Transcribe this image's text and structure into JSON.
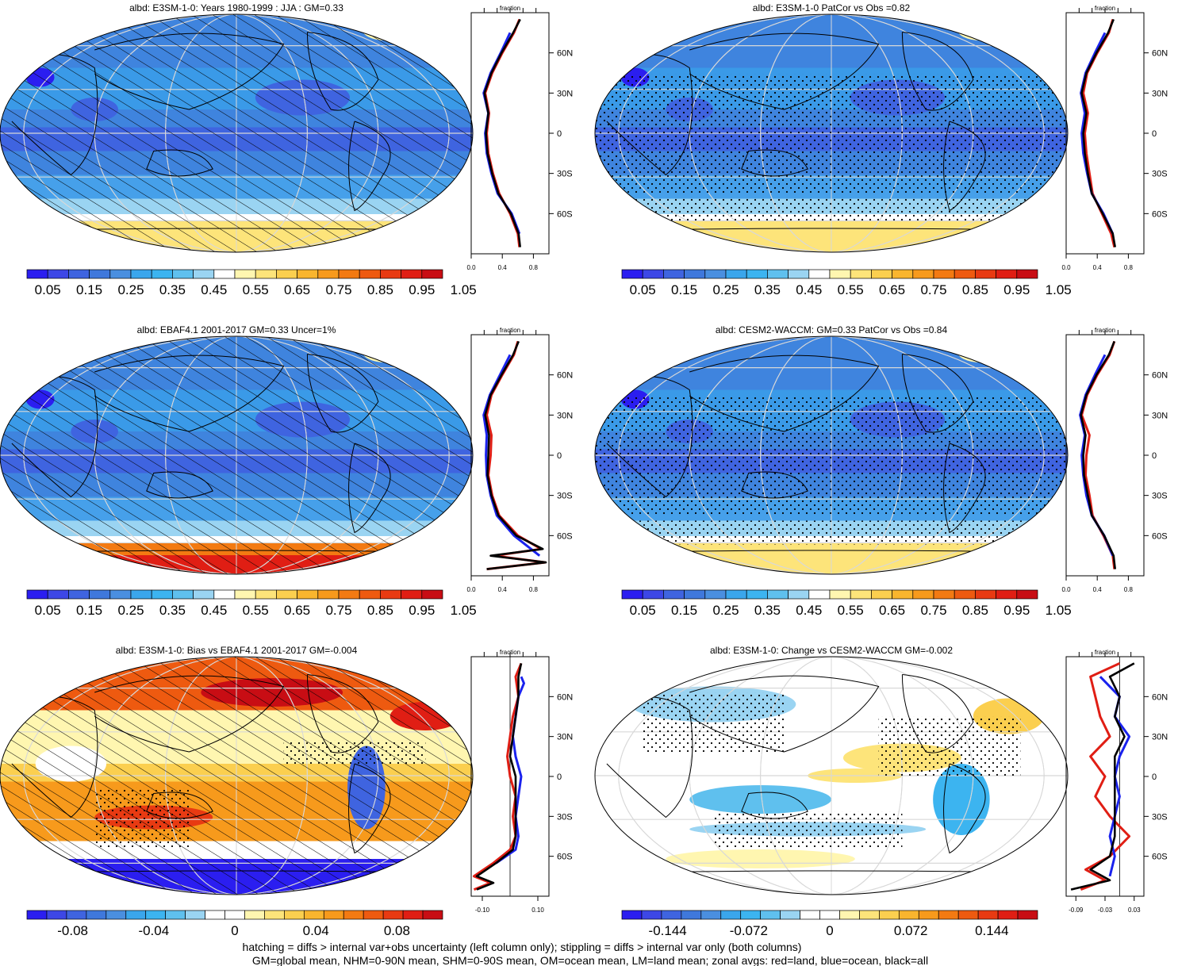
{
  "colors": {
    "levels_seq": [
      "#2b1ef0",
      "#3d47e6",
      "#3f64e0",
      "#3f78dc",
      "#4a8fe0",
      "#3aa6ec",
      "#3cb4f0",
      "#5fc0ee",
      "#9ad4f2",
      "#ffffff",
      "#fff6b0",
      "#fde47a",
      "#fbcf4f",
      "#f9b52e",
      "#f79a1c",
      "#f37a12",
      "#ee5a10",
      "#e83a12",
      "#e01e14",
      "#c80d14"
    ],
    "levels_div": [
      "#2b1ef0",
      "#3d47e6",
      "#3f64e0",
      "#3f78dc",
      "#4a8fe0",
      "#3aa6ec",
      "#3cb4f0",
      "#5fc0ee",
      "#9ad4f2",
      "#ffffff",
      "#ffffff",
      "#fff6b0",
      "#fde47a",
      "#fbcf4f",
      "#f9b52e",
      "#f79a1c",
      "#f37a12",
      "#ee5a10",
      "#e83a12",
      "#e01e14",
      "#c80d14"
    ],
    "land": "#e01e14",
    "ocean": "#1a22ee",
    "all": "#000000"
  },
  "panels": [
    {
      "title": "albd: E3SM-1-0: Years 1980-1999 : JJA : GM=0.33",
      "scale": "seq",
      "hatch": true,
      "stipple": false,
      "colorbar_labels": [
        "0.05",
        "0.15",
        "0.25",
        "0.35",
        "0.45",
        "0.55",
        "0.65",
        "0.75",
        "0.85",
        "0.95",
        "1.05"
      ]
    },
    {
      "title": "albd: E3SM-1-0 PatCor vs Obs =0.82",
      "scale": "seq",
      "hatch": false,
      "stipple": true,
      "colorbar_labels": [
        "0.05",
        "0.15",
        "0.25",
        "0.35",
        "0.45",
        "0.55",
        "0.65",
        "0.75",
        "0.85",
        "0.95",
        "1.05"
      ]
    },
    {
      "title": "albd: EBAF4.1 2001-2017 GM=0.33 Uncer=1%",
      "scale": "seq",
      "hatch": true,
      "stipple": false,
      "colorbar_labels": [
        "0.05",
        "0.15",
        "0.25",
        "0.35",
        "0.45",
        "0.55",
        "0.65",
        "0.75",
        "0.85",
        "0.95",
        "1.05"
      ]
    },
    {
      "title": "albd: CESM2-WACCM: GM=0.33 PatCor vs Obs =0.84",
      "scale": "seq",
      "hatch": false,
      "stipple": true,
      "colorbar_labels": [
        "0.05",
        "0.15",
        "0.25",
        "0.35",
        "0.45",
        "0.55",
        "0.65",
        "0.75",
        "0.85",
        "0.95",
        "1.05"
      ]
    },
    {
      "title": "albd: E3SM-1-0: Bias vs EBAF4.1 2001-2017 GM=-0.004",
      "scale": "div",
      "hatch": true,
      "stipple": true,
      "colorbar_labels": [
        "-0.08",
        "-0.04",
        "0",
        "0.04",
        "0.08"
      ]
    },
    {
      "title": "albd: E3SM-1-0: Change vs CESM2-WACCM GM=-0.002",
      "scale": "div",
      "hatch": false,
      "stipple": true,
      "colorbar_labels": [
        "-0.144",
        "-0.072",
        "0",
        "0.072",
        "0.144"
      ]
    }
  ],
  "chart_data": {
    "type": "heatmap",
    "lat_ticks": [
      "60N",
      "30N",
      "0",
      "30S",
      "60S"
    ],
    "zonal_title": "fraction",
    "zonal_panels": [
      {
        "xticks": [
          "0.0",
          "0.4",
          "0.8"
        ],
        "xlim": [
          0,
          1
        ],
        "series": [
          {
            "lat": [
              -85,
              -75,
              -60,
              -45,
              -30,
              -15,
              0,
              15,
              30,
              45,
              60,
              75,
              85
            ],
            "values": [
              0.62,
              0.6,
              0.5,
              0.36,
              0.28,
              0.22,
              0.2,
              0.23,
              0.18,
              0.27,
              0.4,
              0.55,
              0.62
            ]
          },
          {
            "lat": [
              -75,
              -60,
              -45,
              -30,
              -15,
              0,
              15,
              30,
              45,
              60,
              75
            ],
            "values": [
              0.62,
              0.52,
              0.34,
              0.26,
              0.2,
              0.18,
              0.22,
              0.16,
              0.25,
              0.38,
              0.5
            ]
          },
          {
            "lat": [
              -85,
              -75,
              -60,
              -45,
              -30,
              -15,
              0,
              15,
              30,
              45,
              60,
              75,
              85
            ],
            "values": [
              0.63,
              0.61,
              0.51,
              0.35,
              0.27,
              0.21,
              0.19,
              0.22,
              0.17,
              0.26,
              0.39,
              0.54,
              0.63
            ]
          }
        ]
      },
      {
        "xticks": [
          "0.0",
          "0.4",
          "0.8"
        ],
        "xlim": [
          0,
          1
        ],
        "series": [
          {
            "lat": [
              -85,
              -75,
              -60,
              -45,
              -30,
              -15,
              0,
              15,
              30,
              45,
              60,
              75,
              85
            ],
            "values": [
              0.62,
              0.58,
              0.46,
              0.34,
              0.3,
              0.26,
              0.24,
              0.28,
              0.22,
              0.27,
              0.4,
              0.55,
              0.6
            ]
          },
          {
            "lat": [
              -75,
              -60,
              -45,
              -30,
              -15,
              0,
              15,
              30,
              45,
              60,
              75
            ],
            "values": [
              0.6,
              0.48,
              0.33,
              0.27,
              0.22,
              0.2,
              0.24,
              0.19,
              0.25,
              0.37,
              0.5
            ]
          },
          {
            "lat": [
              -85,
              -75,
              -60,
              -45,
              -30,
              -15,
              0,
              15,
              30,
              45,
              60,
              75,
              85
            ],
            "values": [
              0.63,
              0.6,
              0.47,
              0.33,
              0.28,
              0.24,
              0.22,
              0.26,
              0.2,
              0.26,
              0.39,
              0.54,
              0.61
            ]
          }
        ]
      },
      {
        "xticks": [
          "0.0",
          "0.4",
          "0.8"
        ],
        "xlim": [
          0,
          1
        ],
        "series": [
          {
            "lat": [
              -85,
              -80,
              -75,
              -70,
              -60,
              -45,
              -30,
              -15,
              0,
              15,
              30,
              45,
              60,
              75,
              85
            ],
            "values": [
              0.2,
              0.95,
              0.3,
              0.9,
              0.6,
              0.36,
              0.27,
              0.22,
              0.25,
              0.26,
              0.2,
              0.26,
              0.4,
              0.55,
              0.6
            ]
          },
          {
            "lat": [
              -75,
              -60,
              -45,
              -30,
              -15,
              0,
              15,
              30,
              45,
              60,
              75
            ],
            "values": [
              0.88,
              0.55,
              0.33,
              0.25,
              0.2,
              0.19,
              0.2,
              0.16,
              0.24,
              0.37,
              0.5
            ]
          },
          {
            "lat": [
              -85,
              -80,
              -75,
              -70,
              -60,
              -45,
              -30,
              -15,
              0,
              15,
              30,
              45,
              60,
              75,
              85
            ],
            "values": [
              0.2,
              0.96,
              0.25,
              0.92,
              0.58,
              0.35,
              0.26,
              0.21,
              0.22,
              0.23,
              0.18,
              0.25,
              0.39,
              0.54,
              0.61
            ]
          }
        ]
      },
      {
        "xticks": [
          "0.0",
          "0.4",
          "0.8"
        ],
        "xlim": [
          0,
          1
        ],
        "series": [
          {
            "lat": [
              -85,
              -75,
              -60,
              -45,
              -30,
              -15,
              0,
              15,
              30,
              45,
              60,
              75,
              85
            ],
            "values": [
              0.62,
              0.6,
              0.48,
              0.34,
              0.3,
              0.25,
              0.26,
              0.3,
              0.2,
              0.27,
              0.4,
              0.56,
              0.62
            ]
          },
          {
            "lat": [
              -75,
              -60,
              -45,
              -30,
              -15,
              0,
              15,
              30,
              45,
              60,
              75
            ],
            "values": [
              0.6,
              0.49,
              0.33,
              0.26,
              0.22,
              0.2,
              0.24,
              0.18,
              0.25,
              0.37,
              0.5
            ]
          },
          {
            "lat": [
              -85,
              -75,
              -60,
              -45,
              -30,
              -15,
              0,
              15,
              30,
              45,
              60,
              75,
              85
            ],
            "values": [
              0.63,
              0.61,
              0.49,
              0.33,
              0.28,
              0.23,
              0.22,
              0.25,
              0.19,
              0.26,
              0.39,
              0.55,
              0.62
            ]
          }
        ]
      },
      {
        "xticks": [
          "-0.10",
          "0.10"
        ],
        "xlim": [
          -0.14,
          0.14
        ],
        "zero_line": 0,
        "series": [
          {
            "lat": [
              -85,
              -80,
              -75,
              -65,
              -55,
              -45,
              -30,
              -15,
              0,
              15,
              30,
              45,
              60,
              75,
              85
            ],
            "values": [
              -0.13,
              -0.07,
              -0.13,
              -0.06,
              0.0,
              0.02,
              0.01,
              0.02,
              0.0,
              -0.01,
              0.0,
              0.01,
              0.03,
              0.02,
              0.04
            ]
          },
          {
            "lat": [
              -65,
              -55,
              -45,
              -30,
              -15,
              0,
              15,
              30,
              45,
              60,
              70,
              75
            ],
            "values": [
              -0.05,
              0.02,
              0.03,
              0.02,
              0.03,
              0.04,
              0.02,
              0.01,
              0.02,
              0.03,
              0.05,
              0.04
            ]
          },
          {
            "lat": [
              -85,
              -80,
              -75,
              -65,
              -55,
              -45,
              -30,
              -15,
              0,
              15,
              30,
              45,
              60,
              75,
              85
            ],
            "values": [
              -0.12,
              -0.06,
              -0.12,
              -0.05,
              0.01,
              0.02,
              0.02,
              0.02,
              0.02,
              0.0,
              0.01,
              0.02,
              0.03,
              0.03,
              0.04
            ]
          }
        ]
      },
      {
        "xticks": [
          "-0.09",
          "-0.03",
          "0.03"
        ],
        "xlim": [
          -0.11,
          0.05
        ],
        "zero_line": 0,
        "series": [
          {
            "lat": [
              -85,
              -78,
              -70,
              -60,
              -45,
              -30,
              -15,
              0,
              15,
              30,
              45,
              60,
              75,
              85
            ],
            "values": [
              -0.08,
              -0.03,
              -0.07,
              -0.02,
              0.02,
              -0.02,
              -0.05,
              -0.03,
              -0.06,
              -0.02,
              -0.04,
              -0.05,
              -0.06,
              0.0
            ]
          },
          {
            "lat": [
              -75,
              -60,
              -45,
              -30,
              -15,
              0,
              15,
              30,
              45,
              60,
              75
            ],
            "values": [
              -0.02,
              -0.01,
              -0.02,
              -0.01,
              0.0,
              -0.01,
              0.0,
              0.02,
              -0.01,
              0.0,
              -0.04
            ]
          },
          {
            "lat": [
              -85,
              -78,
              -70,
              -60,
              -45,
              -30,
              -15,
              0,
              15,
              30,
              45,
              60,
              75,
              85
            ],
            "values": [
              -0.1,
              -0.02,
              -0.06,
              -0.02,
              -0.01,
              -0.01,
              -0.01,
              -0.01,
              -0.01,
              0.01,
              -0.01,
              0.0,
              -0.02,
              0.03
            ]
          }
        ]
      }
    ]
  },
  "footer": {
    "line1": "hatching = diffs > internal var+obs uncertainty (left column only); stippling = diffs > internal var only (both columns)",
    "line2": "GM=global mean, NHM=0-90N mean, SHM=0-90S mean, OM=ocean mean, LM=land mean; zonal avgs: red=land, blue=ocean, black=all"
  }
}
